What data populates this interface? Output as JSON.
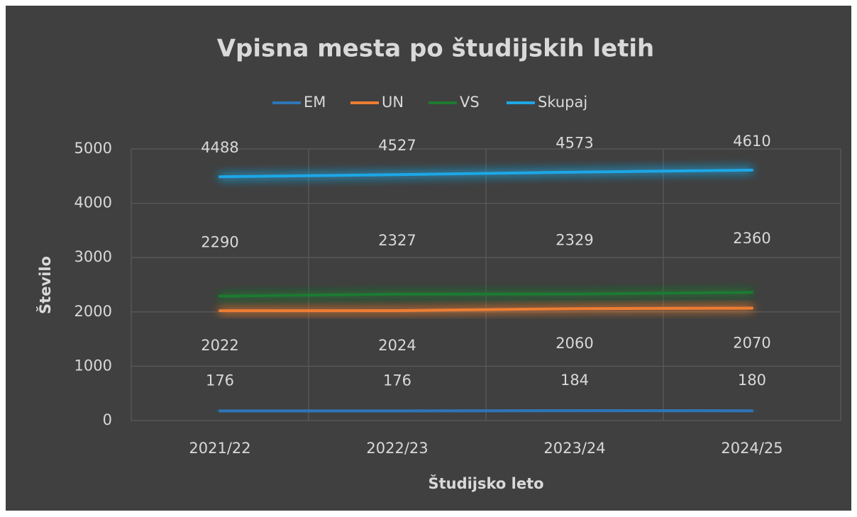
{
  "chart_data": {
    "type": "line",
    "title": "Vpisna mesta po študijskih letih",
    "x_label": "Študijsko leto",
    "y_label": "Število",
    "categories": [
      "2021/22",
      "2022/23",
      "2023/24",
      "2024/25"
    ],
    "series": [
      {
        "name": "EM",
        "color": "#2e75b6",
        "values": [
          176,
          176,
          184,
          180
        ]
      },
      {
        "name": "UN",
        "color": "#ed7d31",
        "values": [
          2022,
          2024,
          2060,
          2070
        ]
      },
      {
        "name": "VS",
        "color": "#1f7a30",
        "values": [
          2290,
          2327,
          2329,
          2360
        ]
      },
      {
        "name": "Skupaj",
        "color": "#1ea7e6",
        "values": [
          4488,
          4527,
          4573,
          4610
        ]
      }
    ],
    "ylim": [
      0,
      5000
    ],
    "yticks": [
      0,
      1000,
      2000,
      3000,
      4000,
      5000
    ],
    "grid": true,
    "legend": "top"
  }
}
